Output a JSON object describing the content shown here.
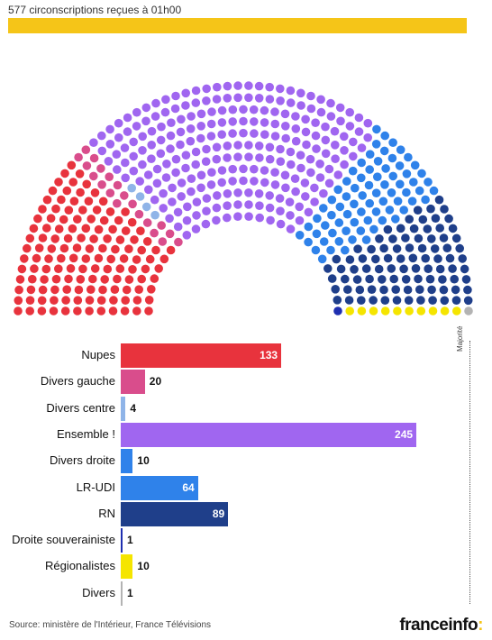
{
  "header": {
    "title": "577 circonscriptions reçues à 01h00",
    "progress": 1.0,
    "progress_color": "#f5c518"
  },
  "chart_data": {
    "type": "bar",
    "orientation": "horizontal",
    "categories": [
      "Nupes",
      "Divers gauche",
      "Divers centre",
      "Ensemble !",
      "Divers droite",
      "LR-UDI",
      "RN",
      "Droite souverainiste",
      "Régionalistes",
      "Divers"
    ],
    "values": [
      133,
      20,
      4,
      245,
      10,
      64,
      89,
      1,
      10,
      1
    ],
    "value_labels": [
      "133",
      "20",
      "4",
      "245",
      "10",
      "64",
      "89",
      "1",
      "10",
      "1"
    ],
    "colors": [
      "#e8333d",
      "#d94d8c",
      "#8fb4e8",
      "#a066f0",
      "#2f82ea",
      "#2f82ea",
      "#1f3f8a",
      "#1f2fb0",
      "#f5e500",
      "#b3b3b3"
    ],
    "seat_colors": [
      "#e8333d",
      "#d94d8c",
      "#8fb4e8",
      "#a066f0",
      "#2f82ea",
      "#2f82ea",
      "#1f3f8a",
      "#1f2fb0",
      "#f5e500",
      "#b3b3b3"
    ],
    "total_seats": 577,
    "majority": 289,
    "majority_label": "Majorité",
    "xlim": [
      0,
      289
    ]
  },
  "footer": {
    "source": "Source: ministère de l'Intérieur, France Télévisions",
    "logo_text": "franceinfo",
    "logo_colon": ":"
  }
}
